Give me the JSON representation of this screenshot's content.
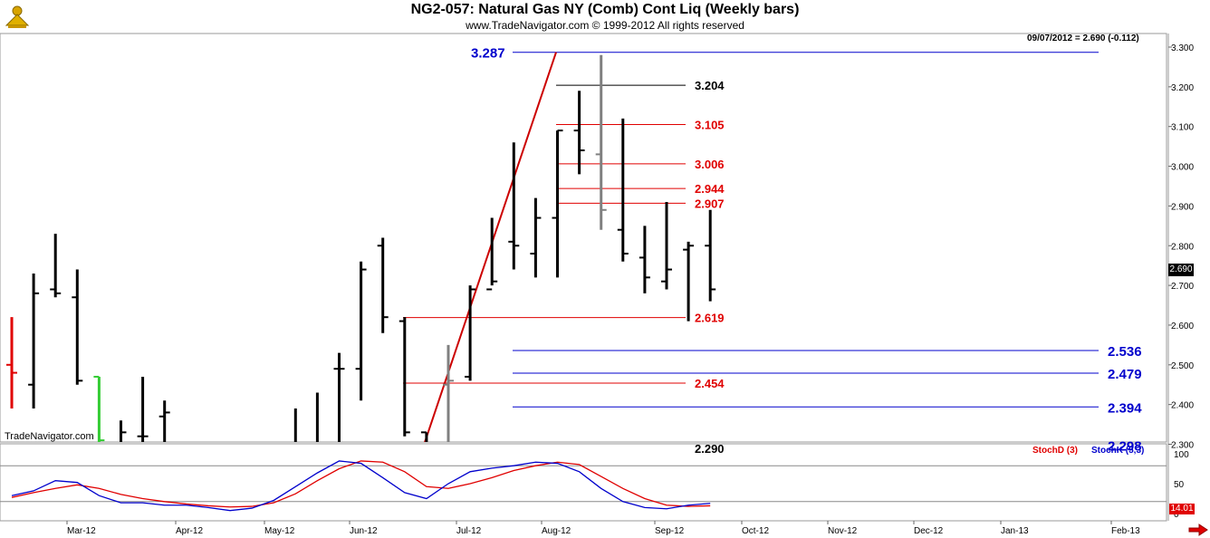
{
  "header": {
    "title": "NG2-057:  Natural Gas NY (Comb) Cont Liq  (Weekly bars)",
    "copyright": "www.TradeNavigator.com © 1999-2012 All rights reserved",
    "last_readout": "09/07/2012 = 2.690 (-0.112)",
    "watermark": "TradeNavigator.com"
  },
  "colors": {
    "bar": "#000000",
    "bar_up_highlight": "#e00000",
    "bar_green_highlight": "#33cc33",
    "bar_grey": "#808080",
    "level_red": "#e00000",
    "level_black": "#000000",
    "level_blue": "#0000cc",
    "trendline": "#cc0000",
    "stoch_d": "#e00000",
    "stoch_k": "#0000cc",
    "grid": "#c8c8c8"
  },
  "chart_data": [
    {
      "type": "bar",
      "subtype": "ohlc",
      "title": "NG2-057:  Natural Gas NY (Comb) Cont Liq  (Weekly bars)",
      "y_axis": {
        "position": "right",
        "ylim": [
          2.21,
          3.3
        ],
        "ticks": [
          "3.300",
          "3.200",
          "3.100",
          "3.000",
          "2.900",
          "2.800",
          "2.700",
          "2.600",
          "2.500",
          "2.400",
          "2.300"
        ],
        "current_price": "2.690"
      },
      "x_axis": {
        "ticks": [
          "Mar-12",
          "Apr-12",
          "May-12",
          "Jun-12",
          "Jul-12",
          "Aug-12",
          "Sep-12",
          "Oct-12",
          "Nov-12",
          "Dec-12",
          "Jan-13",
          "Feb-13"
        ]
      },
      "bars": [
        {
          "week": 0,
          "o": 2.5,
          "h": 2.62,
          "l": 2.39,
          "c": 2.48,
          "color": "red"
        },
        {
          "week": 1,
          "o": 2.45,
          "h": 2.73,
          "l": 2.39,
          "c": 2.68
        },
        {
          "week": 2,
          "o": 2.69,
          "h": 2.83,
          "l": 2.67,
          "c": 2.68
        },
        {
          "week": 3,
          "o": 2.67,
          "h": 2.74,
          "l": 2.45,
          "c": 2.46
        },
        {
          "week": 4,
          "o": 2.47,
          "h": 2.47,
          "l": 2.26,
          "c": 2.31,
          "color": "green"
        },
        {
          "week": 5,
          "o": 2.3,
          "h": 2.36,
          "l": 2.17,
          "c": 2.33
        },
        {
          "week": 6,
          "o": 2.32,
          "h": 2.47,
          "l": 2.29,
          "c": 2.32
        },
        {
          "week": 7,
          "o": 2.37,
          "h": 2.41,
          "l": 2.18,
          "c": 2.38
        },
        {
          "week": 12,
          "o": 2.22,
          "h": 2.29,
          "l": 2.18,
          "c": 2.2
        },
        {
          "week": 13,
          "o": 2.27,
          "h": 2.39,
          "l": 2.21,
          "c": 2.22
        },
        {
          "week": 14,
          "o": 2.27,
          "h": 2.43,
          "l": 2.27,
          "c": 2.27
        },
        {
          "week": 15,
          "o": 2.49,
          "h": 2.53,
          "l": 2.27,
          "c": 2.49
        },
        {
          "week": 16,
          "o": 2.49,
          "h": 2.76,
          "l": 2.41,
          "c": 2.74
        },
        {
          "week": 17,
          "o": 2.8,
          "h": 2.82,
          "l": 2.58,
          "c": 2.62
        },
        {
          "week": 18,
          "o": 2.61,
          "h": 2.62,
          "l": 2.32,
          "c": 2.33
        },
        {
          "week": 19,
          "o": 2.33,
          "h": 2.33,
          "l": 2.22,
          "c": 2.24
        },
        {
          "week": 20,
          "o": 2.45,
          "h": 2.55,
          "l": 2.23,
          "c": 2.46,
          "color": "grey"
        },
        {
          "week": 21,
          "o": 2.47,
          "h": 2.7,
          "l": 2.46,
          "c": 2.69
        },
        {
          "week": 22,
          "o": 2.69,
          "h": 2.87,
          "l": 2.7,
          "c": 2.71
        },
        {
          "week": 23,
          "o": 2.81,
          "h": 3.06,
          "l": 2.74,
          "c": 2.8
        },
        {
          "week": 24,
          "o": 2.78,
          "h": 2.92,
          "l": 2.72,
          "c": 2.87
        },
        {
          "week": 25,
          "o": 2.87,
          "h": 3.09,
          "l": 2.72,
          "c": 3.09
        },
        {
          "week": 26,
          "o": 3.09,
          "h": 3.19,
          "l": 2.98,
          "c": 3.04
        },
        {
          "week": 27,
          "o": 3.03,
          "h": 3.28,
          "l": 2.84,
          "c": 2.89,
          "color": "grey"
        },
        {
          "week": 28,
          "o": 2.84,
          "h": 3.12,
          "l": 2.76,
          "c": 2.78
        },
        {
          "week": 29,
          "o": 2.77,
          "h": 2.85,
          "l": 2.68,
          "c": 2.72
        },
        {
          "week": 30,
          "o": 2.71,
          "h": 2.91,
          "l": 2.69,
          "c": 2.74
        },
        {
          "week": 31,
          "o": 2.79,
          "h": 2.81,
          "l": 2.61,
          "c": 2.8
        },
        {
          "week": 32,
          "o": 2.8,
          "h": 2.89,
          "l": 2.66,
          "c": 2.69
        }
      ],
      "levels": [
        {
          "label": "3.287",
          "value": 3.287,
          "color": "blue"
        },
        {
          "label": "3.204",
          "value": 3.204,
          "color": "black"
        },
        {
          "label": "3.105",
          "value": 3.105,
          "color": "red"
        },
        {
          "label": "3.006",
          "value": 3.006,
          "color": "red"
        },
        {
          "label": "2.944",
          "value": 2.944,
          "color": "red"
        },
        {
          "label": "2.907",
          "value": 2.907,
          "color": "red"
        },
        {
          "label": "2.619",
          "value": 2.619,
          "color": "red"
        },
        {
          "label": "2.536",
          "value": 2.536,
          "color": "blue"
        },
        {
          "label": "2.479",
          "value": 2.479,
          "color": "blue"
        },
        {
          "label": "2.454",
          "value": 2.454,
          "color": "red"
        },
        {
          "label": "2.394",
          "value": 2.394,
          "color": "blue"
        },
        {
          "label": "2.298",
          "value": 2.298,
          "color": "blue"
        },
        {
          "label": "2.290",
          "value": 2.29,
          "color": "black"
        }
      ],
      "trendline": {
        "from": {
          "week": 20,
          "value": 2.21
        },
        "to": {
          "week": 27,
          "value": 3.287
        }
      }
    },
    {
      "type": "line",
      "title": "Stochastic",
      "ylim": [
        0,
        100
      ],
      "ticks": [
        "100",
        "50",
        "0"
      ],
      "current_value": "14.01",
      "series": [
        {
          "name": "StochD (3)",
          "color": "red",
          "values": [
            27,
            35,
            42,
            48,
            42,
            32,
            25,
            20,
            16,
            13,
            11,
            12,
            18,
            33,
            55,
            75,
            88,
            86,
            70,
            45,
            42,
            50,
            60,
            72,
            80,
            86,
            82,
            62,
            42,
            25,
            14,
            12,
            13
          ]
        },
        {
          "name": "StochK (5,3)",
          "color": "blue",
          "values": [
            30,
            38,
            55,
            52,
            30,
            18,
            18,
            14,
            14,
            10,
            5,
            9,
            22,
            45,
            68,
            88,
            84,
            60,
            35,
            25,
            50,
            70,
            76,
            80,
            86,
            84,
            70,
            42,
            20,
            10,
            8,
            14,
            17
          ]
        }
      ]
    }
  ]
}
